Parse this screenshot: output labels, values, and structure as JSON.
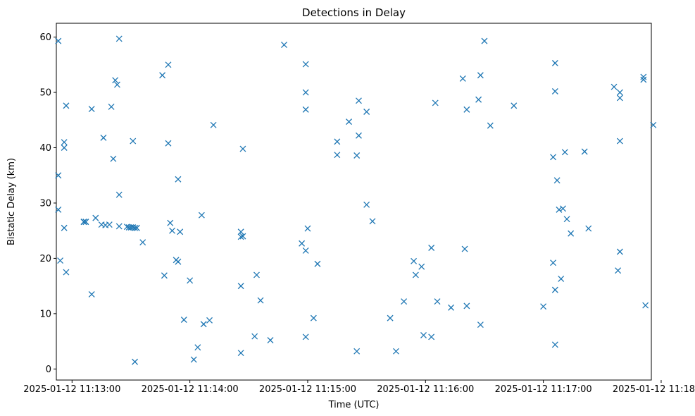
{
  "chart_data": {
    "type": "scatter",
    "title": "Detections in Delay",
    "xlabel": "Time (UTC)",
    "ylabel": "Bistatic Delay (km)",
    "x_unit": "time (HH:MM:SS)",
    "date": "2025-01-12",
    "xlim": [
      "11:12:52",
      "11:17:55"
    ],
    "ylim": [
      -2,
      62.5
    ],
    "x_ticks": [
      "2025-01-12 11:13:00",
      "2025-01-12 11:14:00",
      "2025-01-12 11:15:00",
      "2025-01-12 11:16:00",
      "2025-01-12 11:17:00",
      "2025-01-12 11:18:00"
    ],
    "y_ticks": [
      "0",
      "10",
      "20",
      "30",
      "40",
      "50",
      "60"
    ],
    "marker": "x",
    "color": "#1f77b4",
    "grid": false,
    "legend": "none",
    "points": [
      [
        "11:12:53",
        59.3
      ],
      [
        "11:12:53",
        35.0
      ],
      [
        "11:12:53",
        28.8
      ],
      [
        "11:12:54",
        19.6
      ],
      [
        "11:12:56",
        41.0
      ],
      [
        "11:12:56",
        40.0
      ],
      [
        "11:12:56",
        25.5
      ],
      [
        "11:12:57",
        47.6
      ],
      [
        "11:12:57",
        17.5
      ],
      [
        "11:13:06",
        26.6
      ],
      [
        "11:13:06",
        26.6
      ],
      [
        "11:13:06",
        26.6
      ],
      [
        "11:13:07",
        26.6
      ],
      [
        "11:13:07",
        26.6
      ],
      [
        "11:13:10",
        13.5
      ],
      [
        "11:13:10",
        47.0
      ],
      [
        "11:13:12",
        27.3
      ],
      [
        "11:13:15",
        26.1
      ],
      [
        "11:13:16",
        41.8
      ],
      [
        "11:13:17",
        26.0
      ],
      [
        "11:13:19",
        26.1
      ],
      [
        "11:13:20",
        47.4
      ],
      [
        "11:13:21",
        38.0
      ],
      [
        "11:13:22",
        52.2
      ],
      [
        "11:13:23",
        51.4
      ],
      [
        "11:13:24",
        59.7
      ],
      [
        "11:13:24",
        31.5
      ],
      [
        "11:13:24",
        25.8
      ],
      [
        "11:13:28",
        25.7
      ],
      [
        "11:13:29",
        25.6
      ],
      [
        "11:13:30",
        25.6
      ],
      [
        "11:13:31",
        41.2
      ],
      [
        "11:13:31",
        25.6
      ],
      [
        "11:13:32",
        25.5
      ],
      [
        "11:13:32",
        1.3
      ],
      [
        "11:13:33",
        25.5
      ],
      [
        "11:13:36",
        22.9
      ],
      [
        "11:13:46",
        53.1
      ],
      [
        "11:13:47",
        16.9
      ],
      [
        "11:13:49",
        55.0
      ],
      [
        "11:13:49",
        40.8
      ],
      [
        "11:13:50",
        26.4
      ],
      [
        "11:13:51",
        25.0
      ],
      [
        "11:13:53",
        19.7
      ],
      [
        "11:13:54",
        19.4
      ],
      [
        "11:13:54",
        34.3
      ],
      [
        "11:13:55",
        24.8
      ],
      [
        "11:13:57",
        8.9
      ],
      [
        "11:14:00",
        16.0
      ],
      [
        "11:14:02",
        1.7
      ],
      [
        "11:14:04",
        3.9
      ],
      [
        "11:14:06",
        27.8
      ],
      [
        "11:14:07",
        8.1
      ],
      [
        "11:14:10",
        8.8
      ],
      [
        "11:14:12",
        44.1
      ],
      [
        "11:14:26",
        15.0
      ],
      [
        "11:14:26",
        24.8
      ],
      [
        "11:14:26",
        23.9
      ],
      [
        "11:14:26",
        2.9
      ],
      [
        "11:14:27",
        39.8
      ],
      [
        "11:14:27",
        24.0
      ],
      [
        "11:14:33",
        5.9
      ],
      [
        "11:14:34",
        17.0
      ],
      [
        "11:14:36",
        12.4
      ],
      [
        "11:14:41",
        5.2
      ],
      [
        "11:14:48",
        58.6
      ],
      [
        "11:14:57",
        22.7
      ],
      [
        "11:14:59",
        55.1
      ],
      [
        "11:14:59",
        50.0
      ],
      [
        "11:14:59",
        46.9
      ],
      [
        "11:14:59",
        21.4
      ],
      [
        "11:14:59",
        5.8
      ],
      [
        "11:15:00",
        25.4
      ],
      [
        "11:15:03",
        9.2
      ],
      [
        "11:15:05",
        19.0
      ],
      [
        "11:15:15",
        41.1
      ],
      [
        "11:15:15",
        38.7
      ],
      [
        "11:15:21",
        44.7
      ],
      [
        "11:15:25",
        38.6
      ],
      [
        "11:15:25",
        3.2
      ],
      [
        "11:15:26",
        48.5
      ],
      [
        "11:15:26",
        42.2
      ],
      [
        "11:15:30",
        46.5
      ],
      [
        "11:15:30",
        29.7
      ],
      [
        "11:15:33",
        26.7
      ],
      [
        "11:15:42",
        9.2
      ],
      [
        "11:15:45",
        3.2
      ],
      [
        "11:15:49",
        12.2
      ],
      [
        "11:15:54",
        19.5
      ],
      [
        "11:15:55",
        17.0
      ],
      [
        "11:15:58",
        18.5
      ],
      [
        "11:15:59",
        6.1
      ],
      [
        "11:16:03",
        21.9
      ],
      [
        "11:16:03",
        5.8
      ],
      [
        "11:16:05",
        48.1
      ],
      [
        "11:16:06",
        12.2
      ],
      [
        "11:16:13",
        11.1
      ],
      [
        "11:16:19",
        52.5
      ],
      [
        "11:16:20",
        21.7
      ],
      [
        "11:16:21",
        46.9
      ],
      [
        "11:16:21",
        11.4
      ],
      [
        "11:16:27",
        48.7
      ],
      [
        "11:16:28",
        53.1
      ],
      [
        "11:16:28",
        8.0
      ],
      [
        "11:16:30",
        59.3
      ],
      [
        "11:16:33",
        44.0
      ],
      [
        "11:16:45",
        47.6
      ],
      [
        "11:17:00",
        11.3
      ],
      [
        "11:17:05",
        19.2
      ],
      [
        "11:17:05",
        38.3
      ],
      [
        "11:17:06",
        55.3
      ],
      [
        "11:17:06",
        50.2
      ],
      [
        "11:17:06",
        14.3
      ],
      [
        "11:17:06",
        4.4
      ],
      [
        "11:17:07",
        34.1
      ],
      [
        "11:17:08",
        28.8
      ],
      [
        "11:17:09",
        16.3
      ],
      [
        "11:17:10",
        29.0
      ],
      [
        "11:17:11",
        39.2
      ],
      [
        "11:17:12",
        27.1
      ],
      [
        "11:17:14",
        24.5
      ],
      [
        "11:17:21",
        39.3
      ],
      [
        "11:17:23",
        25.4
      ],
      [
        "11:17:36",
        51.0
      ],
      [
        "11:17:38",
        17.8
      ],
      [
        "11:17:39",
        50.0
      ],
      [
        "11:17:39",
        49.0
      ],
      [
        "11:17:39",
        41.2
      ],
      [
        "11:17:39",
        21.2
      ],
      [
        "11:17:51",
        52.8
      ],
      [
        "11:17:51",
        52.3
      ],
      [
        "11:17:52",
        11.5
      ],
      [
        "11:17:56",
        44.1
      ]
    ]
  }
}
